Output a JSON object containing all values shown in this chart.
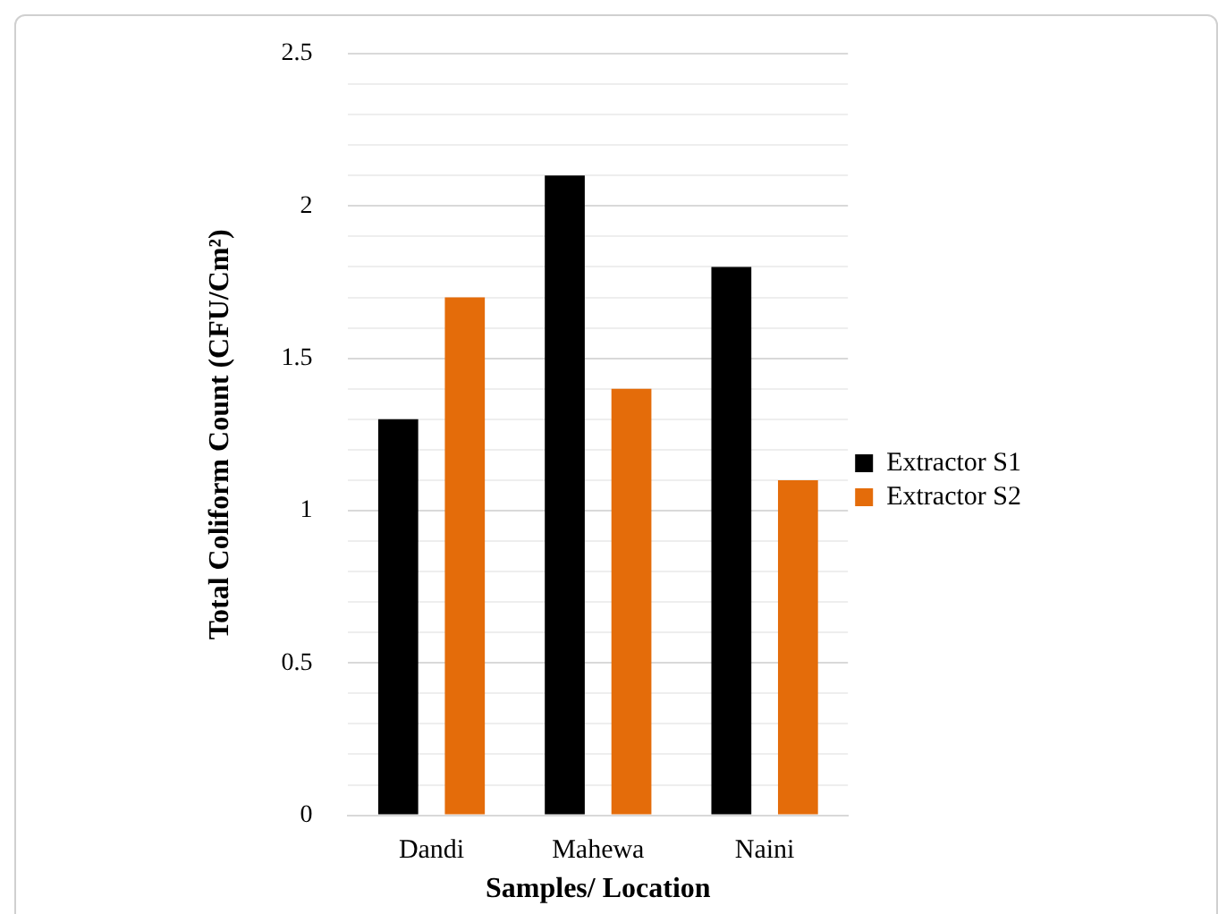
{
  "chart_data": {
    "type": "bar",
    "xlabel": "Samples/ Location",
    "ylabel": "Total Coliform Count (CFU/Cm²)",
    "categories": [
      "Dandi",
      "Mahewa",
      "Naini"
    ],
    "series": [
      {
        "name": "Extractor S1",
        "color": "#000000",
        "values": [
          1.3,
          2.1,
          1.8
        ]
      },
      {
        "name": "Extractor S2",
        "color": "#e46c0a",
        "values": [
          1.7,
          1.4,
          1.1
        ]
      }
    ],
    "ylim": [
      0,
      2.5
    ],
    "yticks": [
      0,
      {
        "value": 0.1,
        "label": null
      },
      {
        "value": 0.2,
        "label": null
      },
      {
        "value": 0.3,
        "label": null
      },
      {
        "value": 0.4,
        "label": null
      },
      0.5,
      {
        "value": 0.6,
        "label": null
      },
      {
        "value": 0.7,
        "label": null
      },
      {
        "value": 0.8,
        "label": null
      },
      {
        "value": 0.9,
        "label": null
      },
      1,
      {
        "value": 1.1,
        "label": null
      },
      {
        "value": 1.2,
        "label": null
      },
      {
        "value": 1.3,
        "label": null
      },
      {
        "value": 1.4,
        "label": null
      },
      1.5,
      {
        "value": 1.6,
        "label": null
      },
      {
        "value": 1.7,
        "label": null
      },
      {
        "value": 1.8,
        "label": null
      },
      {
        "value": 1.9,
        "label": null
      },
      2,
      {
        "value": 2.1,
        "label": null
      },
      {
        "value": 2.2,
        "label": null
      },
      {
        "value": 2.3,
        "label": null
      },
      {
        "value": 2.4,
        "label": null
      },
      2.5
    ],
    "grid": "y",
    "legend": "right"
  }
}
